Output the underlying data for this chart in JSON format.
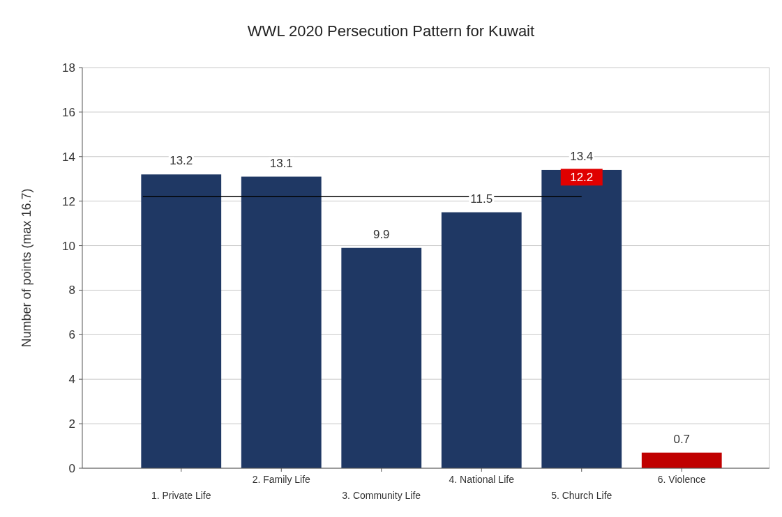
{
  "chart_data": {
    "type": "bar",
    "title": "WWL 2020 Persecution Pattern for Kuwait",
    "ylabel": "Number of points (max 16.7)",
    "categories": [
      "1. Private Life",
      "2. Family Life",
      "3. Community Life",
      "4. National Life",
      "5. Church Life",
      "6. Violence"
    ],
    "values": [
      13.2,
      13.1,
      9.9,
      11.5,
      13.4,
      0.7
    ],
    "colors": [
      "#1f3864",
      "#1f3864",
      "#1f3864",
      "#1f3864",
      "#1f3864",
      "#c00000"
    ],
    "ylim": [
      0,
      18
    ],
    "yticks": [
      0,
      2,
      4,
      6,
      8,
      10,
      12,
      14,
      16,
      18
    ],
    "grid": "y",
    "data_labels": true,
    "ref_lines": [
      {
        "axis": "y",
        "value": 12.2,
        "label": "12.2",
        "color": "#000000"
      }
    ]
  }
}
